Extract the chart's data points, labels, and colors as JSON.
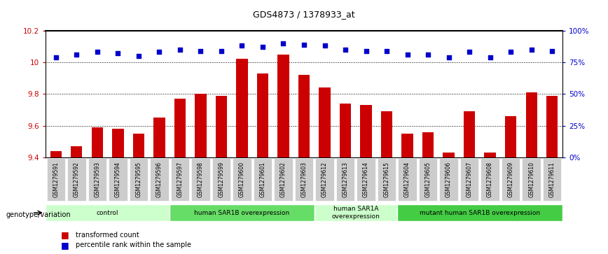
{
  "title": "GDS4873 / 1378933_at",
  "samples": [
    "GSM1279591",
    "GSM1279592",
    "GSM1279593",
    "GSM1279594",
    "GSM1279595",
    "GSM1279596",
    "GSM1279597",
    "GSM1279598",
    "GSM1279599",
    "GSM1279600",
    "GSM1279601",
    "GSM1279602",
    "GSM1279603",
    "GSM1279612",
    "GSM1279613",
    "GSM1279614",
    "GSM1279615",
    "GSM1279604",
    "GSM1279605",
    "GSM1279606",
    "GSM1279607",
    "GSM1279608",
    "GSM1279609",
    "GSM1279610",
    "GSM1279611"
  ],
  "bar_values": [
    9.44,
    9.47,
    9.59,
    9.58,
    9.55,
    9.65,
    9.77,
    9.8,
    9.79,
    10.02,
    9.93,
    10.05,
    9.92,
    9.84,
    9.74,
    9.73,
    9.69,
    9.55,
    9.56,
    9.43,
    9.69,
    9.43,
    9.66,
    9.81,
    9.79
  ],
  "dot_values": [
    79,
    81,
    83,
    82,
    80,
    83,
    85,
    84,
    84,
    88,
    87,
    90,
    89,
    88,
    85,
    84,
    84,
    81,
    81,
    79,
    83,
    79,
    83,
    85,
    84
  ],
  "ylim_left": [
    9.4,
    10.2
  ],
  "ylim_right": [
    0,
    100
  ],
  "yticks_left": [
    9.4,
    9.6,
    9.8,
    10.0,
    10.2
  ],
  "yticks_right": [
    0,
    25,
    50,
    75,
    100
  ],
  "bar_color": "#cc0000",
  "dot_color": "#0000cc",
  "groups": [
    {
      "label": "control",
      "start": 0,
      "end": 5,
      "color": "#ccffcc"
    },
    {
      "label": "human SAR1B overexpression",
      "start": 6,
      "end": 12,
      "color": "#66dd66"
    },
    {
      "label": "human SAR1A\noverexpression",
      "start": 13,
      "end": 16,
      "color": "#ccffcc"
    },
    {
      "label": "mutant human SAR1B overexpression",
      "start": 17,
      "end": 24,
      "color": "#44cc44"
    }
  ],
  "tick_bg_color": "#cccccc",
  "genotype_label": "genotype/variation",
  "legend_bar_label": "transformed count",
  "legend_dot_label": "percentile rank within the sample",
  "right_axis_color": "#0000cc",
  "left_axis_color": "#cc0000",
  "fig_width": 8.68,
  "fig_height": 3.63
}
